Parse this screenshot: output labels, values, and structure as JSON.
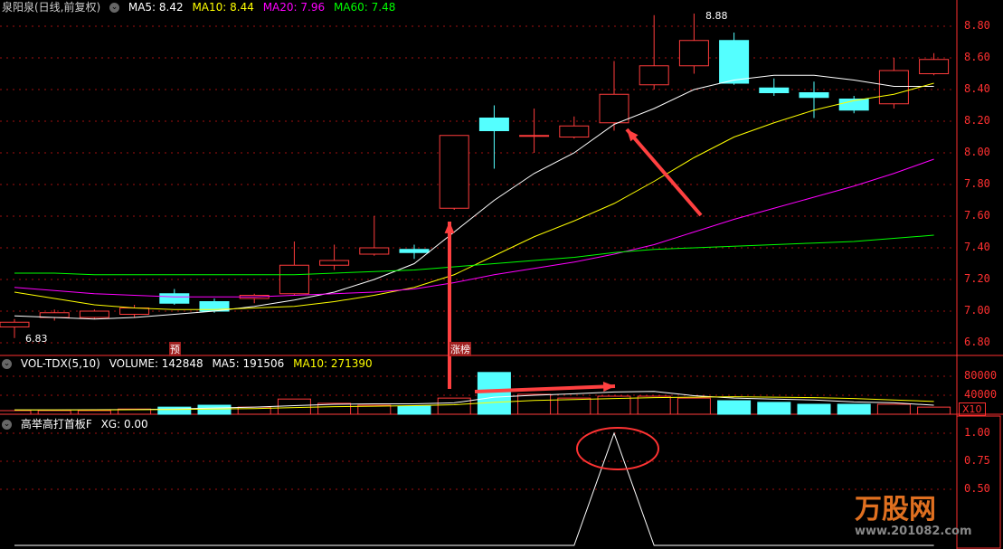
{
  "price_header": {
    "title": "泉阳泉(日线,前复权)",
    "ma5": "MA5: 8.42",
    "ma10": "MA10: 8.44",
    "ma20": "MA20: 7.96",
    "ma60": "MA60: 7.48"
  },
  "volume_header": {
    "title": "VOL-TDX(5,10)",
    "volume": "VOLUME: 142848",
    "ma5": "MA5: 191506",
    "ma10": "MA10: 271390"
  },
  "indicator_header": {
    "title": "高举高打首板F",
    "xg": "XG: 0.00"
  },
  "colors": {
    "up": "#ff3c3c",
    "down": "#54ffff",
    "ma5": "#ffffff",
    "ma10": "#ffff00",
    "ma20": "#ff00ff",
    "ma60": "#00ff00",
    "axis": "#ff3030"
  },
  "price_axis": [
    "8.80",
    "8.60",
    "8.40",
    "8.20",
    "8.00",
    "7.80",
    "7.60",
    "7.40",
    "7.20",
    "7.00",
    "6.80"
  ],
  "volume_axis": [
    "80000",
    "40000"
  ],
  "volume_multiplier": "X10",
  "indicator_axis": [
    "1.00",
    "0.75",
    "0.50"
  ],
  "annotations": {
    "high_label": "8.88",
    "low_label": "6.83",
    "tag_pre": "预",
    "tag_limit": "涨榜"
  },
  "logo": {
    "text": "万股网",
    "url_text": "www.201082.com"
  },
  "chart_data": [
    {
      "type": "candlestick",
      "ylim": [
        6.8,
        8.8
      ],
      "candles": [
        [
          6.9,
          6.93,
          6.83,
          6.95
        ],
        [
          6.96,
          6.99,
          6.94,
          7.01
        ],
        [
          6.96,
          7.0,
          6.95,
          7.01
        ],
        [
          6.98,
          7.02,
          6.96,
          7.04
        ],
        [
          7.11,
          7.05,
          7.04,
          7.14
        ],
        [
          7.06,
          7.0,
          6.99,
          7.08
        ],
        [
          7.08,
          7.1,
          7.05,
          7.11
        ],
        [
          7.11,
          7.29,
          7.1,
          7.44
        ],
        [
          7.29,
          7.32,
          7.26,
          7.42
        ],
        [
          7.36,
          7.4,
          7.35,
          7.6
        ],
        [
          7.39,
          7.37,
          7.33,
          7.42
        ],
        [
          7.65,
          8.11,
          7.64,
          8.11
        ],
        [
          8.22,
          8.14,
          7.9,
          8.3
        ],
        [
          8.11,
          8.11,
          8.0,
          8.28
        ],
        [
          8.1,
          8.17,
          8.09,
          8.23
        ],
        [
          8.19,
          8.37,
          8.14,
          8.58
        ],
        [
          8.43,
          8.55,
          8.4,
          8.87
        ],
        [
          8.55,
          8.71,
          8.5,
          8.88
        ],
        [
          8.71,
          8.44,
          8.43,
          8.76
        ],
        [
          8.41,
          8.38,
          8.36,
          8.47
        ],
        [
          8.38,
          8.35,
          8.22,
          8.45
        ],
        [
          8.34,
          8.27,
          8.25,
          8.36
        ],
        [
          8.31,
          8.52,
          8.28,
          8.6
        ],
        [
          8.5,
          8.59,
          8.49,
          8.63
        ]
      ],
      "series": [
        {
          "name": "MA5",
          "values": [
            6.97,
            6.96,
            6.95,
            6.96,
            6.98,
            7.0,
            7.03,
            7.07,
            7.12,
            7.2,
            7.3,
            7.5,
            7.7,
            7.87,
            8.0,
            8.18,
            8.28,
            8.4,
            8.46,
            8.49,
            8.49,
            8.46,
            8.42,
            8.42
          ]
        },
        {
          "name": "MA10",
          "values": [
            7.12,
            7.08,
            7.04,
            7.02,
            7.01,
            7.01,
            7.02,
            7.03,
            7.06,
            7.1,
            7.15,
            7.23,
            7.35,
            7.47,
            7.57,
            7.68,
            7.82,
            7.97,
            8.1,
            8.19,
            8.27,
            8.33,
            8.37,
            8.44
          ]
        },
        {
          "name": "MA20",
          "values": [
            7.15,
            7.13,
            7.11,
            7.1,
            7.09,
            7.09,
            7.09,
            7.1,
            7.11,
            7.12,
            7.14,
            7.18,
            7.23,
            7.27,
            7.31,
            7.36,
            7.42,
            7.5,
            7.58,
            7.65,
            7.72,
            7.79,
            7.87,
            7.96
          ]
        },
        {
          "name": "MA60",
          "values": [
            7.24,
            7.24,
            7.23,
            7.23,
            7.23,
            7.23,
            7.23,
            7.23,
            7.24,
            7.25,
            7.26,
            7.28,
            7.3,
            7.32,
            7.34,
            7.37,
            7.39,
            7.4,
            7.41,
            7.42,
            7.43,
            7.44,
            7.46,
            7.48
          ]
        }
      ]
    },
    {
      "type": "bar",
      "name": "VOLUME",
      "ylim": [
        0,
        90000
      ],
      "values": [
        7600,
        7600,
        7600,
        11000,
        15000,
        19000,
        15000,
        32000,
        23000,
        19000,
        17000,
        34000,
        88000,
        42000,
        34000,
        38000,
        38000,
        34000,
        28500,
        25000,
        21000,
        21000,
        21000,
        15000
      ],
      "ma5": [
        9000,
        9000,
        9500,
        10000,
        11000,
        13000,
        15000,
        18000,
        21000,
        22000,
        22000,
        24000,
        36000,
        40000,
        43000,
        47000,
        48000,
        39000,
        34000,
        32000,
        30000,
        26000,
        24000,
        19000
      ],
      "ma10": [
        9000,
        9000,
        9000,
        9500,
        10000,
        11000,
        12000,
        14000,
        16000,
        17000,
        18000,
        20000,
        25000,
        29000,
        31000,
        33000,
        35000,
        36000,
        37000,
        36000,
        35000,
        33000,
        30000,
        27000
      ]
    },
    {
      "type": "line",
      "name": "XG",
      "ylim": [
        0,
        1
      ],
      "values": [
        0,
        0,
        0,
        0,
        0,
        0,
        0,
        0,
        0,
        0,
        0,
        0,
        0,
        0,
        0,
        1,
        0,
        0,
        0,
        0,
        0,
        0,
        0,
        0
      ]
    }
  ]
}
